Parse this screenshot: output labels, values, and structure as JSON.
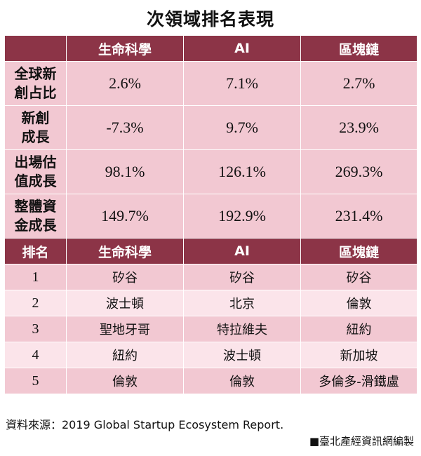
{
  "title": "次領域排名表現",
  "header": [
    "",
    "生命科學",
    "AI",
    "區塊鏈"
  ],
  "metrics": [
    {
      "label": "全球新\n創占比",
      "values": [
        "2.6%",
        "7.1%",
        "2.7%"
      ]
    },
    {
      "label": "新創\n成長",
      "values": [
        "-7.3%",
        "9.7%",
        "23.9%"
      ]
    },
    {
      "label": "出場估\n值成長",
      "values": [
        "98.1%",
        "126.1%",
        "269.3%"
      ]
    },
    {
      "label": "整體資\n金成長",
      "values": [
        "149.7%",
        "192.9%",
        "231.4%"
      ]
    }
  ],
  "rank_header": [
    "排名",
    "生命科學",
    "AI",
    "區塊鏈"
  ],
  "rankings": [
    {
      "rank": "1",
      "values": [
        "矽谷",
        "矽谷",
        "矽谷"
      ]
    },
    {
      "rank": "2",
      "values": [
        "波士頓",
        "北京",
        "倫敦"
      ]
    },
    {
      "rank": "3",
      "values": [
        "聖地牙哥",
        "特拉維夫",
        "紐約"
      ]
    },
    {
      "rank": "4",
      "values": [
        "紐約",
        "波士頓",
        "新加坡"
      ]
    },
    {
      "rank": "5",
      "values": [
        "倫敦",
        "倫敦",
        "多倫多-滑鐵盧"
      ]
    }
  ],
  "source": "資料來源：2019 Global Startup Ecosystem Report.",
  "credit": "■臺北產經資訊網編製"
}
